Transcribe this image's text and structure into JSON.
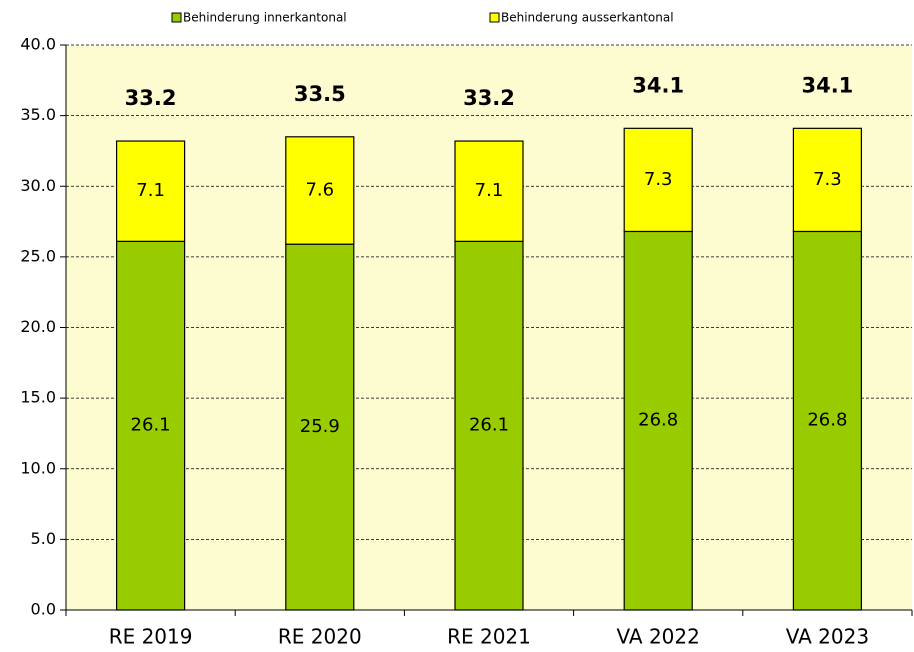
{
  "chart_data": {
    "type": "stacked_bar",
    "categories": [
      "RE 2019",
      "RE 2020",
      "RE 2021",
      "VA 2022",
      "VA 2023"
    ],
    "series": [
      {
        "name": "Behinderung innerkantonal",
        "color": "#99cc00",
        "values": [
          26.1,
          25.9,
          26.1,
          26.8,
          26.8
        ]
      },
      {
        "name": "Behinderung ausserkantonal",
        "color": "#ffff00",
        "values": [
          7.1,
          7.6,
          7.1,
          7.3,
          7.3
        ]
      }
    ],
    "totals": [
      33.2,
      33.5,
      33.2,
      34.1,
      34.1
    ],
    "ylim": [
      0,
      40
    ],
    "yticks": [
      {
        "value": 0,
        "label": "0.0"
      },
      {
        "value": 5,
        "label": "5.0"
      },
      {
        "value": 10,
        "label": "10.0"
      },
      {
        "value": 15,
        "label": "15.0"
      },
      {
        "value": 20,
        "label": "20.0"
      },
      {
        "value": 25,
        "label": "25.0"
      },
      {
        "value": 30,
        "label": "30.0"
      },
      {
        "value": 35,
        "label": "35.0"
      },
      {
        "value": 40,
        "label": "40.0"
      }
    ],
    "grid": true,
    "plot_background": "#fdfbd0"
  }
}
